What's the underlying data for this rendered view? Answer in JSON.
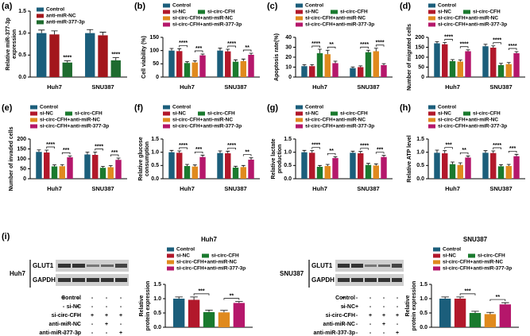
{
  "chart_data": [
    {
      "type": "bar",
      "panel": "(a)",
      "ylabel": [
        "Relative miR-377-3p",
        "expression"
      ],
      "categories": [
        "Huh7",
        "SNU387"
      ],
      "ylim": [
        0,
        1.5
      ],
      "yticks": [
        {
          "value": 0,
          "label": "0.0"
        },
        0.5,
        {
          "value": 1,
          "label": "1.0"
        },
        1.5
      ],
      "series": [
        {
          "name": "Control",
          "color": "#1b5e7b",
          "values": [
            1.0,
            1.0
          ],
          "errors": [
            0.07,
            0.08
          ]
        },
        {
          "name": "anti-miR-NC",
          "color": "#a3161c",
          "values": [
            0.97,
            0.95
          ],
          "errors": [
            0.08,
            0.07
          ]
        },
        {
          "name": "anti-miR-377-3p",
          "color": "#1e6b2e",
          "values": [
            0.33,
            0.38
          ],
          "errors": [
            0.04,
            0.06
          ]
        }
      ],
      "significance": [
        [
          "****"
        ],
        [
          "****"
        ]
      ]
    },
    {
      "type": "bar",
      "panel": "(b)",
      "ylabel": [
        "Cell viability (%)"
      ],
      "categories": [
        "Huh7",
        "SNU387"
      ],
      "ylim": [
        0,
        150
      ],
      "yticks": [
        0,
        50,
        100,
        150
      ],
      "series": [
        {
          "name": "Control",
          "color": "#1b5e7b",
          "values": [
            100,
            100
          ],
          "errors": [
            8,
            9
          ]
        },
        {
          "name": "si-NC",
          "color": "#b2182b",
          "values": [
            98,
            97
          ],
          "errors": [
            9,
            8
          ]
        },
        {
          "name": "si-circ-CFH",
          "color": "#1a7a2e",
          "values": [
            53,
            58
          ],
          "errors": [
            5,
            7
          ]
        },
        {
          "name": "si-circ-CFH+anti-miR-NC",
          "color": "#e08a1e",
          "values": [
            55,
            60
          ],
          "errors": [
            6,
            8
          ]
        },
        {
          "name": "si-circ-CFH+anti-miR-377-3p",
          "color": "#b5176b",
          "values": [
            82,
            84
          ],
          "errors": [
            5,
            6
          ]
        }
      ],
      "significance": [
        [
          "****",
          "***"
        ],
        [
          "****",
          "**"
        ]
      ]
    },
    {
      "type": "bar",
      "panel": "(c)",
      "ylabel": [
        "Apoptosis rate(%)"
      ],
      "categories": [
        "Huh7",
        "SNU387"
      ],
      "ylim": [
        0,
        40
      ],
      "yticks": [
        0,
        10,
        20,
        30,
        40
      ],
      "series": [
        {
          "name": "Control",
          "color": "#1b5e7b",
          "values": [
            11,
            9
          ],
          "errors": [
            1.5,
            1.2
          ]
        },
        {
          "name": "si-NC",
          "color": "#b2182b",
          "values": [
            11,
            10
          ],
          "errors": [
            1.5,
            1.3
          ]
        },
        {
          "name": "si-circ-CFH",
          "color": "#1a7a2e",
          "values": [
            24,
            25
          ],
          "errors": [
            4,
            2
          ]
        },
        {
          "name": "si-circ-CFH+anti-miR-NC",
          "color": "#e08a1e",
          "values": [
            23,
            26
          ],
          "errors": [
            4,
            3
          ]
        },
        {
          "name": "si-circ-CFH+anti-miR-377-3p",
          "color": "#b5176b",
          "values": [
            14,
            12
          ],
          "errors": [
            2,
            1.5
          ]
        }
      ],
      "significance": [
        [
          "****",
          "**"
        ],
        [
          "****",
          "****"
        ]
      ]
    },
    {
      "type": "bar",
      "panel": "(d)",
      "ylabel": [
        "Number of migrated cells"
      ],
      "categories": [
        "Huh7",
        "SNU387"
      ],
      "ylim": [
        0,
        200
      ],
      "yticks": [
        0,
        50,
        100,
        150,
        200
      ],
      "series": [
        {
          "name": "Control",
          "color": "#1b5e7b",
          "values": [
            170,
            155
          ],
          "errors": [
            8,
            10
          ]
        },
        {
          "name": "si-NC",
          "color": "#b2182b",
          "values": [
            165,
            148
          ],
          "errors": [
            9,
            9
          ]
        },
        {
          "name": "si-circ-CFH",
          "color": "#1a7a2e",
          "values": [
            80,
            60
          ],
          "errors": [
            8,
            9
          ]
        },
        {
          "name": "si-circ-CFH+anti-miR-NC",
          "color": "#e08a1e",
          "values": [
            78,
            65
          ],
          "errors": [
            8,
            8
          ]
        },
        {
          "name": "si-circ-CFH+anti-miR-377-3p",
          "color": "#b5176b",
          "values": [
            130,
            120
          ],
          "errors": [
            7,
            8
          ]
        }
      ],
      "significance": [
        [
          "****",
          "****"
        ],
        [
          "****",
          "****"
        ]
      ]
    },
    {
      "type": "bar",
      "panel": "(e)",
      "ylabel": [
        "Number of invaded cells"
      ],
      "categories": [
        "Huh7",
        "SNU387"
      ],
      "ylim": [
        0,
        200
      ],
      "yticks": [
        0,
        50,
        100,
        150,
        200
      ],
      "series": [
        {
          "name": "Control",
          "color": "#1b5e7b",
          "values": [
            135,
            122
          ],
          "errors": [
            10,
            12
          ]
        },
        {
          "name": "si-NC",
          "color": "#b2182b",
          "values": [
            132,
            120
          ],
          "errors": [
            12,
            14
          ]
        },
        {
          "name": "si-circ-CFH",
          "color": "#1a7a2e",
          "values": [
            62,
            55
          ],
          "errors": [
            8,
            7
          ]
        },
        {
          "name": "si-circ-CFH+anti-miR-NC",
          "color": "#e08a1e",
          "values": [
            63,
            58
          ],
          "errors": [
            8,
            8
          ]
        },
        {
          "name": "si-circ-CFH+anti-miR-377-3p",
          "color": "#b5176b",
          "values": [
            108,
            95
          ],
          "errors": [
            7,
            9
          ]
        }
      ],
      "significance": [
        [
          "****",
          "***"
        ],
        [
          "****",
          "***"
        ]
      ]
    },
    {
      "type": "bar",
      "panel": "(f)",
      "ylabel": [
        "Relative glucose",
        "consumption"
      ],
      "categories": [
        "Huh7",
        "SNU387"
      ],
      "ylim": [
        0,
        1.5
      ],
      "yticks": [
        {
          "value": 0,
          "label": "0.0"
        },
        0.5,
        {
          "value": 1,
          "label": "1.0"
        },
        1.5
      ],
      "series": [
        {
          "name": "Control",
          "color": "#1b5e7b",
          "values": [
            1.0,
            0.97
          ],
          "errors": [
            0.07,
            0.08
          ]
        },
        {
          "name": "si-NC",
          "color": "#b2182b",
          "values": [
            0.98,
            0.96
          ],
          "errors": [
            0.07,
            0.08
          ]
        },
        {
          "name": "si-circ-CFH",
          "color": "#1a7a2e",
          "values": [
            0.48,
            0.42
          ],
          "errors": [
            0.06,
            0.05
          ]
        },
        {
          "name": "si-circ-CFH+anti-miR-NC",
          "color": "#e08a1e",
          "values": [
            0.46,
            0.44
          ],
          "errors": [
            0.06,
            0.06
          ]
        },
        {
          "name": "si-circ-CFH+anti-miR-377-3p",
          "color": "#b5176b",
          "values": [
            0.82,
            0.72
          ],
          "errors": [
            0.07,
            0.07
          ]
        }
      ],
      "significance": [
        [
          "****",
          "***"
        ],
        [
          "****",
          "**"
        ]
      ]
    },
    {
      "type": "bar",
      "panel": "(g)",
      "ylabel": [
        "Relative lactate",
        "production"
      ],
      "categories": [
        "Huh7",
        "SNU387"
      ],
      "ylim": [
        0,
        1.5
      ],
      "yticks": [
        {
          "value": 0,
          "label": "0.0"
        },
        0.5,
        {
          "value": 1,
          "label": "1.0"
        },
        1.5
      ],
      "series": [
        {
          "name": "Control",
          "color": "#1b5e7b",
          "values": [
            1.0,
            0.98
          ],
          "errors": [
            0.07,
            0.06
          ]
        },
        {
          "name": "si-NC",
          "color": "#b2182b",
          "values": [
            0.98,
            0.96
          ],
          "errors": [
            0.08,
            0.07
          ]
        },
        {
          "name": "si-circ-CFH",
          "color": "#1a7a2e",
          "values": [
            0.45,
            0.52
          ],
          "errors": [
            0.05,
            0.06
          ]
        },
        {
          "name": "si-circ-CFH+anti-miR-NC",
          "color": "#e08a1e",
          "values": [
            0.48,
            0.5
          ],
          "errors": [
            0.06,
            0.06
          ]
        },
        {
          "name": "si-circ-CFH+anti-miR-377-3p",
          "color": "#b5176b",
          "values": [
            0.78,
            0.82
          ],
          "errors": [
            0.05,
            0.06
          ]
        }
      ],
      "significance": [
        [
          "****",
          "**"
        ],
        [
          "****",
          "***"
        ]
      ]
    },
    {
      "type": "bar",
      "panel": "(h)",
      "ylabel": [
        "Relative ATP level"
      ],
      "categories": [
        "Huh7",
        "SNU387"
      ],
      "ylim": [
        0,
        1.5
      ],
      "yticks": [
        {
          "value": 0,
          "label": "0.0"
        },
        0.5,
        {
          "value": 1,
          "label": "1.0"
        },
        1.5
      ],
      "series": [
        {
          "name": "Control",
          "color": "#1b5e7b",
          "values": [
            0.98,
            0.98
          ],
          "errors": [
            0.1,
            0.08
          ]
        },
        {
          "name": "si-NC",
          "color": "#b2182b",
          "values": [
            0.96,
            0.97
          ],
          "errors": [
            0.1,
            0.08
          ]
        },
        {
          "name": "si-circ-CFH",
          "color": "#1a7a2e",
          "values": [
            0.55,
            0.47
          ],
          "errors": [
            0.08,
            0.06
          ]
        },
        {
          "name": "si-circ-CFH+anti-miR-NC",
          "color": "#e08a1e",
          "values": [
            0.52,
            0.48
          ],
          "errors": [
            0.08,
            0.06
          ]
        },
        {
          "name": "si-circ-CFH+anti-miR-377-3p",
          "color": "#b5176b",
          "values": [
            0.8,
            0.85
          ],
          "errors": [
            0.06,
            0.07
          ]
        }
      ],
      "significance": [
        [
          "***",
          "**"
        ],
        [
          "****",
          "***"
        ]
      ]
    },
    {
      "type": "bar",
      "title": "Huh7",
      "ylabel": [
        "Relative",
        "protein expression"
      ],
      "categories": [
        null
      ],
      "ylim": [
        0,
        1.5
      ],
      "yticks": [
        {
          "value": 0,
          "label": "0.0"
        },
        0.5,
        {
          "value": 1,
          "label": "1.0"
        },
        1.5
      ],
      "series": [
        {
          "name": "Control",
          "color": "#1b5e7b",
          "values": [
            1.0
          ],
          "errors": [
            0.06
          ]
        },
        {
          "name": "si-NC",
          "color": "#b2182b",
          "values": [
            0.96
          ],
          "errors": [
            0.1
          ]
        },
        {
          "name": "si-circ-CFH",
          "color": "#1a7a2e",
          "values": [
            0.53
          ],
          "errors": [
            0.07
          ]
        },
        {
          "name": "si-circ-CFH+anti-miR-NC",
          "color": "#e08a1e",
          "values": [
            0.52
          ],
          "errors": [
            0.07
          ]
        },
        {
          "name": "si-circ-CFH+anti-miR-377-3p",
          "color": "#b5176b",
          "values": [
            0.85
          ],
          "errors": [
            0.05
          ]
        }
      ],
      "significance": [
        [
          "***",
          "**"
        ]
      ]
    },
    {
      "type": "bar",
      "title": "SNU387",
      "ylabel": [
        "Relative",
        "protein expression"
      ],
      "categories": [
        null
      ],
      "ylim": [
        0,
        1.5
      ],
      "yticks": [
        {
          "value": 0,
          "label": "0.0"
        },
        0.5,
        {
          "value": 1,
          "label": "1.0"
        },
        1.5
      ],
      "series": [
        {
          "name": "Control",
          "color": "#1b5e7b",
          "values": [
            1.0
          ],
          "errors": [
            0.06
          ]
        },
        {
          "name": "si-NC",
          "color": "#b2182b",
          "values": [
            1.0
          ],
          "errors": [
            0.06
          ]
        },
        {
          "name": "si-circ-CFH",
          "color": "#1a7a2e",
          "values": [
            0.5
          ],
          "errors": [
            0.06
          ]
        },
        {
          "name": "si-circ-CFH+anti-miR-NC",
          "color": "#e08a1e",
          "values": [
            0.46
          ],
          "errors": [
            0.06
          ]
        },
        {
          "name": "si-circ-CFH+anti-miR-377-3p",
          "color": "#b5176b",
          "values": [
            0.8
          ],
          "errors": [
            0.06
          ]
        }
      ],
      "significance": [
        [
          "***",
          "**"
        ]
      ]
    }
  ],
  "blot_panel": {
    "label": "(i)",
    "blots": [
      {
        "cell_line": "Huh7",
        "proteins": [
          "GLUT1",
          "GAPDH"
        ]
      },
      {
        "cell_line": "SNU387",
        "proteins": [
          "GLUT1",
          "GAPDH"
        ]
      }
    ],
    "conditions": [
      {
        "name": "Control",
        "marks": [
          "+",
          "-",
          "-",
          "-",
          "-"
        ]
      },
      {
        "name": "si-NC",
        "marks": [
          "-",
          "+",
          "-",
          "-",
          "-"
        ]
      },
      {
        "name": "si-circ-CFH",
        "marks": [
          "-",
          "-",
          "+",
          "+",
          "+"
        ]
      },
      {
        "name": "anti-miR-NC",
        "marks": [
          "-",
          "-",
          "-",
          "+",
          "-"
        ]
      },
      {
        "name": "anti-miR-377-3p",
        "marks": [
          "-",
          "-",
          "-",
          "-",
          "+"
        ]
      }
    ]
  }
}
